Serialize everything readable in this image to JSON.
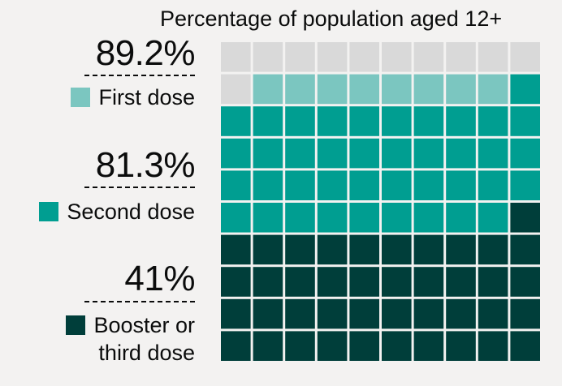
{
  "chart_data": {
    "type": "waffle",
    "title": "Percentage of population aged 12+",
    "grid": {
      "rows": 10,
      "cols": 10
    },
    "series": [
      {
        "name": "First dose",
        "percent_label": "89.2%",
        "value": 89.2,
        "color": "#7bc6c0"
      },
      {
        "name": "Second dose",
        "percent_label": "81.3%",
        "value": 81.3,
        "color": "#009e91"
      },
      {
        "name": "Booster or third dose",
        "label_lines": [
          "Booster or",
          "third dose"
        ],
        "percent_label": "41%",
        "value": 41,
        "color": "#003e3a"
      }
    ],
    "remainder_color": "#d9d9d9"
  }
}
